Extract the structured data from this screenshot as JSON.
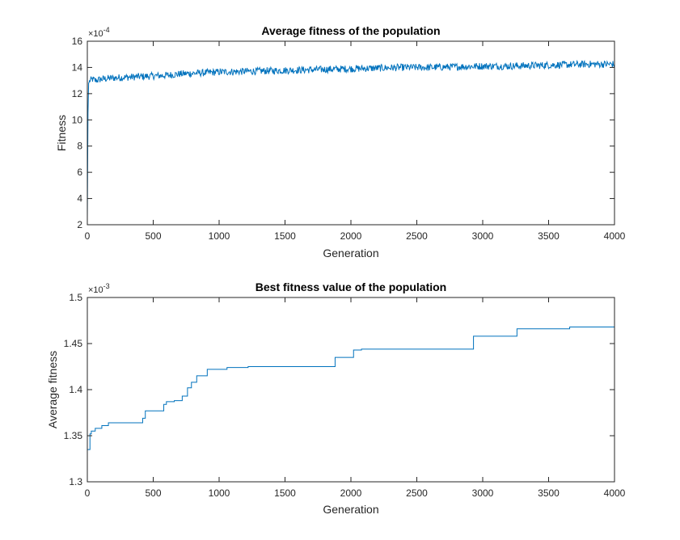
{
  "chart_data": [
    {
      "type": "line",
      "title": "Average fitness of the population",
      "xlabel": "Generation",
      "ylabel": "Fitness",
      "exponent_label": "×10",
      "exponent_value": "-4",
      "xlim": [
        0,
        4000
      ],
      "ylim": [
        2,
        16
      ],
      "xticks": [
        0,
        500,
        1000,
        1500,
        2000,
        2500,
        3000,
        3500,
        4000
      ],
      "yticks": [
        2,
        4,
        6,
        8,
        10,
        12,
        14,
        16
      ],
      "grid": false,
      "line_color": "#0072bd",
      "series": [
        {
          "x": [
            0,
            5,
            10,
            20,
            40,
            60,
            100,
            150,
            200,
            300,
            400,
            500,
            600,
            700,
            800,
            900,
            1000,
            1200,
            1400,
            1600,
            1800,
            2000,
            2200,
            2400,
            2600,
            2800,
            3000,
            3200,
            3400,
            3600,
            3800,
            4000
          ],
          "values": [
            2.5,
            10.5,
            12.8,
            13.0,
            13.1,
            13.0,
            13.1,
            13.15,
            13.2,
            13.25,
            13.3,
            13.35,
            13.4,
            13.5,
            13.55,
            13.6,
            13.65,
            13.7,
            13.75,
            13.8,
            13.85,
            13.9,
            13.95,
            14.0,
            14.0,
            14.05,
            14.1,
            14.1,
            14.15,
            14.2,
            14.25,
            14.25
          ]
        }
      ]
    },
    {
      "type": "line",
      "title": "Best fitness value of the population",
      "xlabel": "Generation",
      "ylabel": "Average fitness",
      "exponent_label": "×10",
      "exponent_value": "-3",
      "xlim": [
        0,
        4000
      ],
      "ylim": [
        1.3,
        1.5
      ],
      "xticks": [
        0,
        500,
        1000,
        1500,
        2000,
        2500,
        3000,
        3500,
        4000
      ],
      "yticks": [
        1.3,
        1.35,
        1.4,
        1.45,
        1.5
      ],
      "ytick_labels": [
        "1.3",
        "1.35",
        "1.4",
        "1.45",
        "1.5"
      ],
      "grid": false,
      "line_color": "#0072bd",
      "series": [
        {
          "x": [
            0,
            20,
            30,
            60,
            110,
            160,
            420,
            440,
            580,
            600,
            660,
            720,
            760,
            790,
            830,
            910,
            1060,
            1220,
            1880,
            2020,
            2080,
            2930,
            3260,
            3660
          ],
          "values": [
            1.335,
            1.352,
            1.355,
            1.358,
            1.361,
            1.364,
            1.369,
            1.377,
            1.384,
            1.387,
            1.388,
            1.393,
            1.402,
            1.408,
            1.415,
            1.422,
            1.424,
            1.425,
            1.435,
            1.443,
            1.444,
            1.458,
            1.466,
            1.468
          ]
        }
      ]
    }
  ]
}
